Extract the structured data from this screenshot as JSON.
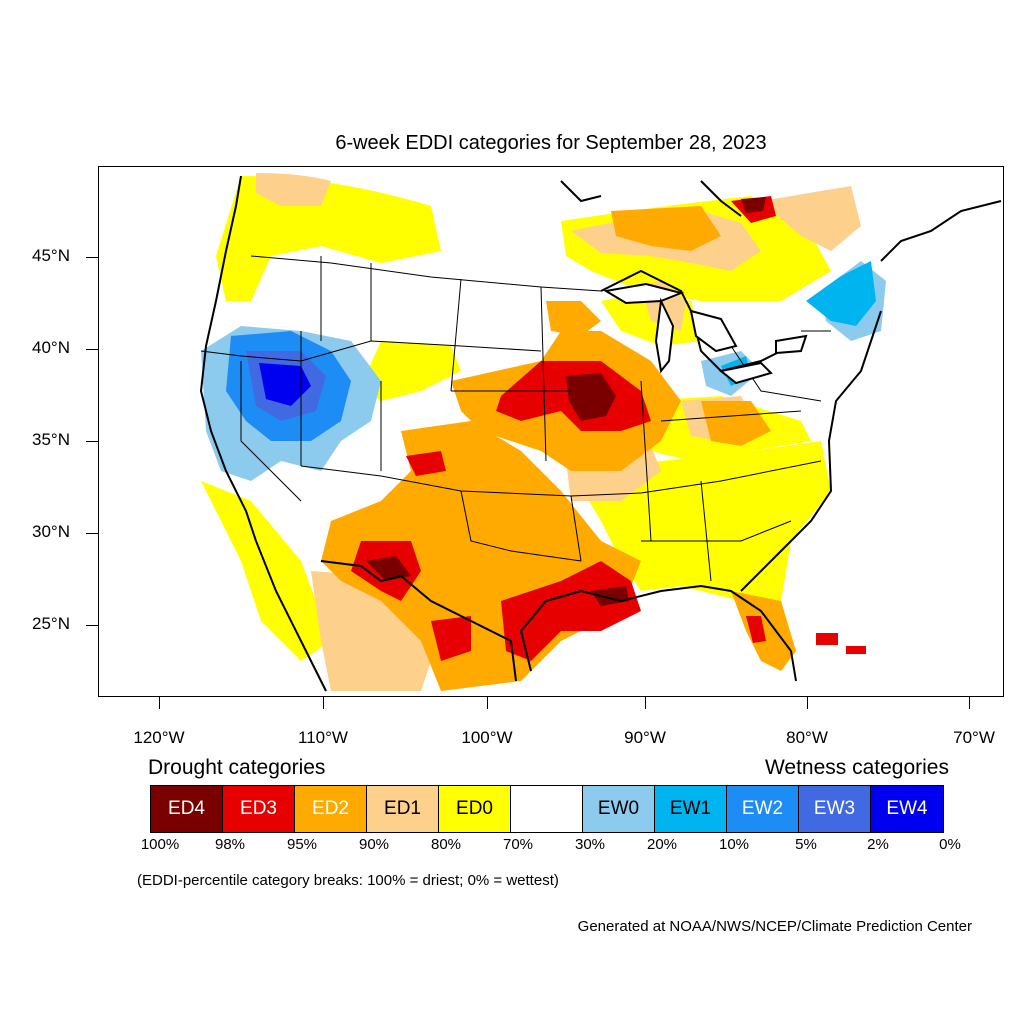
{
  "title": "6-week EDDI categories for September 28, 2023",
  "axes": {
    "lat_labels": [
      "45°N",
      "40°N",
      "35°N",
      "30°N",
      "25°N"
    ],
    "lon_labels": [
      "120°W",
      "110°W",
      "100°W",
      "90°W",
      "80°W",
      "70°W"
    ]
  },
  "legend": {
    "drought_title": "Drought categories",
    "wetness_title": "Wetness categories",
    "categories": [
      {
        "label": "ED4",
        "color": "#7a0000",
        "text_color": "#ffffff"
      },
      {
        "label": "ED3",
        "color": "#e60000",
        "text_color": "#ffffff"
      },
      {
        "label": "ED2",
        "color": "#ffaa00",
        "text_color": "#ffffff"
      },
      {
        "label": "ED1",
        "color": "#fdd08c",
        "text_color": "#000000"
      },
      {
        "label": "ED0",
        "color": "#ffff00",
        "text_color": "#000000"
      },
      {
        "label": "",
        "color": "#ffffff",
        "text_color": "#000000"
      },
      {
        "label": "EW0",
        "color": "#8ccaee",
        "text_color": "#000000"
      },
      {
        "label": "EW1",
        "color": "#00b4f0",
        "text_color": "#000000"
      },
      {
        "label": "EW2",
        "color": "#1e8cf5",
        "text_color": "#ffffff"
      },
      {
        "label": "EW3",
        "color": "#4169e1",
        "text_color": "#ffffff"
      },
      {
        "label": "EW4",
        "color": "#0000f0",
        "text_color": "#ffffff"
      }
    ],
    "percentiles": [
      "100%",
      "98%",
      "95%",
      "90%",
      "80%",
      "70%",
      "30%",
      "20%",
      "10%",
      "5%",
      "2%",
      "0%"
    ]
  },
  "note": "(EDDI-percentile category breaks: 100% = driest; 0% = wettest)",
  "credit": "Generated at NOAA/NWS/NCEP/Climate Prediction Center"
}
